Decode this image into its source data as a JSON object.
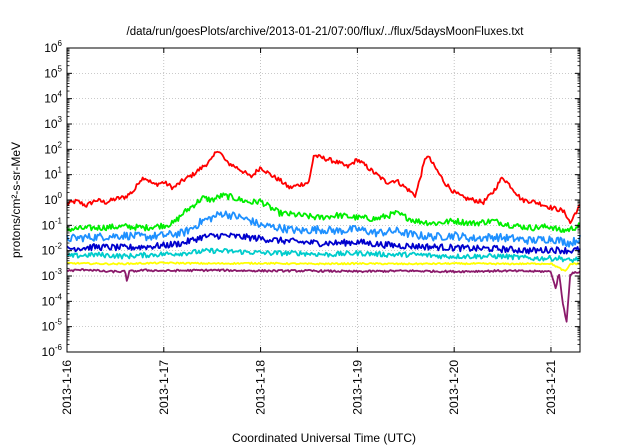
{
  "chart_data": {
    "type": "line",
    "title": "/data/run/goesPlots/archive/2013-01-21/07:00/flux/../flux/5daysMoonFluxes.txt",
    "xlabel": "Coordinated Universal Time (UTC)",
    "ylabel": "protons/cm²-s-sr-MeV",
    "y_scale": "log",
    "ylim": [
      1e-06,
      1000000.0
    ],
    "xlim": [
      0,
      5.3
    ],
    "x_ticks": [
      {
        "x": 0,
        "label": "2013-1-16"
      },
      {
        "x": 1,
        "label": "2013-1-17"
      },
      {
        "x": 2,
        "label": "2013-1-18"
      },
      {
        "x": 3,
        "label": "2013-1-19"
      },
      {
        "x": 4,
        "label": "2013-1-20"
      },
      {
        "x": 5,
        "label": "2013-1-21"
      }
    ],
    "y_ticks": [
      {
        "exp": 6,
        "label": "6"
      },
      {
        "exp": 5,
        "label": "5"
      },
      {
        "exp": 4,
        "label": "4"
      },
      {
        "exp": 3,
        "label": "3"
      },
      {
        "exp": 2,
        "label": "2"
      },
      {
        "exp": 1,
        "label": "1"
      },
      {
        "exp": 0,
        "label": "0"
      },
      {
        "exp": -1,
        "label": "-1"
      },
      {
        "exp": -2,
        "label": "-2"
      },
      {
        "exp": -3,
        "label": "-3"
      },
      {
        "exp": -4,
        "label": "-4"
      },
      {
        "exp": -5,
        "label": "-5"
      },
      {
        "exp": -6,
        "label": "-6"
      }
    ],
    "tick_base": "10",
    "grid": true,
    "series": [
      {
        "color": "#ff0000",
        "x": [
          0,
          0.1,
          0.2,
          0.3,
          0.4,
          0.5,
          0.6,
          0.7,
          0.75,
          0.8,
          0.9,
          1.0,
          1.1,
          1.2,
          1.3,
          1.4,
          1.5,
          1.55,
          1.6,
          1.65,
          1.7,
          1.8,
          1.9,
          2.0,
          2.1,
          2.2,
          2.3,
          2.4,
          2.5,
          2.55,
          2.6,
          2.7,
          2.8,
          2.9,
          3.0,
          3.1,
          3.2,
          3.3,
          3.4,
          3.5,
          3.6,
          3.7,
          3.72,
          3.8,
          3.9,
          4.0,
          4.1,
          4.2,
          4.3,
          4.4,
          4.5,
          4.6,
          4.7,
          4.8,
          4.9,
          5.0,
          5.1,
          5.15,
          5.2,
          5.25,
          5.3
        ],
        "y": [
          0.7,
          0.9,
          0.6,
          1.0,
          0.8,
          1.1,
          1.3,
          2.5,
          6.0,
          8.0,
          4.0,
          5.0,
          3.0,
          6.0,
          10.0,
          20.0,
          40.0,
          100.0,
          60.0,
          30.0,
          25.0,
          15.0,
          8.0,
          20.0,
          10.0,
          6.0,
          3.0,
          4.0,
          5.0,
          60.0,
          50.0,
          40.0,
          30.0,
          20.0,
          40.0,
          20.0,
          10.0,
          5.0,
          6.0,
          3.0,
          1.5,
          40.0,
          60.0,
          20.0,
          5.0,
          2.0,
          1.2,
          1.0,
          0.8,
          2.0,
          8.0,
          3.0,
          1.0,
          0.9,
          0.7,
          0.5,
          0.4,
          0.3,
          0.12,
          0.3,
          0.6
        ]
      },
      {
        "color": "#00ee00",
        "x": [
          0,
          0.3,
          0.6,
          0.8,
          1.0,
          1.1,
          1.2,
          1.3,
          1.4,
          1.5,
          1.6,
          1.7,
          1.8,
          1.9,
          2.0,
          2.1,
          2.2,
          2.4,
          2.6,
          2.8,
          3.0,
          3.2,
          3.4,
          3.6,
          3.8,
          4.0,
          4.2,
          4.4,
          4.6,
          4.8,
          5.0,
          5.1,
          5.2,
          5.3
        ],
        "y": [
          0.07,
          0.08,
          0.09,
          0.08,
          0.1,
          0.12,
          0.3,
          0.6,
          1.2,
          1.0,
          1.5,
          1.3,
          1.0,
          0.8,
          0.9,
          0.5,
          0.3,
          0.25,
          0.2,
          0.25,
          0.2,
          0.18,
          0.3,
          0.15,
          0.12,
          0.15,
          0.12,
          0.15,
          0.1,
          0.08,
          0.09,
          0.06,
          0.07,
          0.1
        ]
      },
      {
        "color": "#1e90ff",
        "x": [
          0,
          0.3,
          0.6,
          0.8,
          1.0,
          1.2,
          1.3,
          1.4,
          1.5,
          1.6,
          1.7,
          1.8,
          1.9,
          2.0,
          2.2,
          2.4,
          2.6,
          2.8,
          3.0,
          3.2,
          3.4,
          3.6,
          3.8,
          4.0,
          4.2,
          4.4,
          4.6,
          4.8,
          5.0,
          5.2,
          5.3
        ],
        "y": [
          0.03,
          0.035,
          0.04,
          0.035,
          0.04,
          0.05,
          0.08,
          0.15,
          0.2,
          0.3,
          0.25,
          0.2,
          0.15,
          0.1,
          0.08,
          0.06,
          0.07,
          0.06,
          0.07,
          0.05,
          0.06,
          0.04,
          0.035,
          0.04,
          0.03,
          0.035,
          0.03,
          0.025,
          0.03,
          0.02,
          0.03
        ]
      },
      {
        "color": "#0000cd",
        "x": [
          0,
          0.3,
          0.6,
          0.9,
          1.0,
          1.2,
          1.4,
          1.6,
          1.8,
          2.0,
          2.2,
          2.4,
          2.6,
          2.8,
          3.0,
          3.2,
          3.4,
          3.6,
          3.8,
          4.0,
          4.2,
          4.4,
          4.6,
          4.8,
          5.0,
          5.2,
          5.3
        ],
        "y": [
          0.012,
          0.014,
          0.013,
          0.015,
          0.016,
          0.02,
          0.035,
          0.04,
          0.035,
          0.03,
          0.025,
          0.022,
          0.02,
          0.02,
          0.022,
          0.018,
          0.016,
          0.015,
          0.014,
          0.013,
          0.012,
          0.012,
          0.011,
          0.01,
          0.011,
          0.01,
          0.011
        ]
      },
      {
        "color": "#00cccc",
        "x": [
          0,
          0.3,
          0.6,
          0.9,
          1.2,
          1.5,
          1.8,
          2.1,
          2.4,
          2.7,
          3.0,
          3.3,
          3.6,
          3.9,
          4.2,
          4.5,
          4.8,
          5.1,
          5.2,
          5.3
        ],
        "y": [
          0.006,
          0.007,
          0.006,
          0.007,
          0.008,
          0.01,
          0.009,
          0.008,
          0.008,
          0.007,
          0.008,
          0.007,
          0.007,
          0.006,
          0.006,
          0.006,
          0.005,
          0.005,
          0.004,
          0.005
        ]
      },
      {
        "color": "#ffff00",
        "x": [
          0,
          0.5,
          1.0,
          1.5,
          2.0,
          2.5,
          3.0,
          3.5,
          4.0,
          4.5,
          5.0,
          5.15,
          5.2,
          5.3
        ],
        "y": [
          0.0032,
          0.003,
          0.0033,
          0.0031,
          0.0032,
          0.003,
          0.0031,
          0.003,
          0.0031,
          0.003,
          0.0031,
          0.0015,
          0.003,
          0.0031
        ]
      },
      {
        "color": "#8b1a6b",
        "x": [
          0,
          0.2,
          0.4,
          0.6,
          0.62,
          0.64,
          0.8,
          1.0,
          1.5,
          2.0,
          2.5,
          3.0,
          3.5,
          4.0,
          4.5,
          5.0,
          5.05,
          5.08,
          5.12,
          5.16,
          5.2,
          5.3
        ],
        "y": [
          0.0016,
          0.0018,
          0.0015,
          0.0015,
          0.0006,
          0.0015,
          0.0017,
          0.0016,
          0.0017,
          0.0016,
          0.0016,
          0.0015,
          0.0016,
          0.0015,
          0.0016,
          0.0015,
          0.0003,
          0.0015,
          0.0001,
          1.5e-05,
          0.0012,
          0.0015
        ]
      }
    ]
  }
}
